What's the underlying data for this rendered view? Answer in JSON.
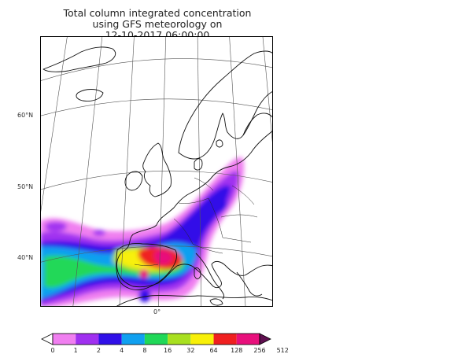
{
  "title": {
    "line1": "Total column integrated concentration",
    "line2": "using GFS meteorology on",
    "line3": "12-10-2017 06:00:00"
  },
  "map": {
    "lat_labels": [
      "60°N",
      "50°N",
      "40°N"
    ],
    "lon_labels": [
      "0°"
    ]
  },
  "legend": {
    "levels": [
      "0",
      "1",
      "2",
      "4",
      "8",
      "16",
      "32",
      "64",
      "128",
      "256",
      "512"
    ],
    "colors": [
      "#ffffff",
      "#f07ff0",
      "#a030f0",
      "#3010e8",
      "#10a0f0",
      "#20d858",
      "#a8e020",
      "#f8f008",
      "#f02020",
      "#e8107c",
      "#601050"
    ]
  }
}
